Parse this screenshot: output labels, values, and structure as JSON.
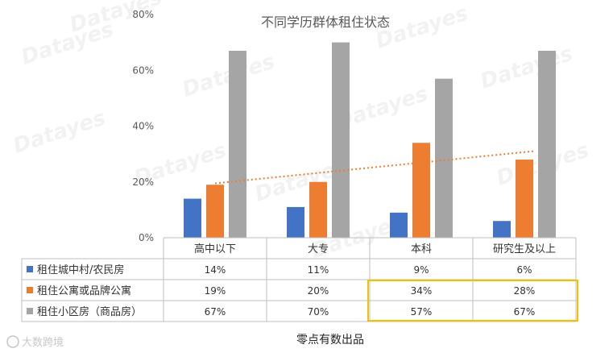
{
  "chart_data": {
    "type": "bar",
    "title": "不同学历群体租住状态",
    "categories": [
      "高中以下",
      "大专",
      "本科",
      "研究生及以上"
    ],
    "y_ticks": [
      "0%",
      "20%",
      "40%",
      "60%",
      "80%"
    ],
    "ylim": [
      0,
      80
    ],
    "grid": false,
    "legend_position": "data-table",
    "series": [
      {
        "name": "租住城中村/农民房",
        "color": "#4472C4",
        "values": [
          14,
          11,
          9,
          6
        ],
        "labels": [
          "14%",
          "11%",
          "9%",
          "6%"
        ]
      },
      {
        "name": "租住公寓或品牌公寓",
        "color": "#ED7D31",
        "values": [
          19,
          20,
          34,
          28
        ],
        "labels": [
          "19%",
          "20%",
          "34%",
          "28%"
        ]
      },
      {
        "name": "租住小区房（商品房）",
        "color": "#A5A5A5",
        "values": [
          67,
          70,
          57,
          67
        ],
        "labels": [
          "67%",
          "70%",
          "57%",
          "67%"
        ]
      }
    ],
    "trendline": {
      "series": "租住公寓或品牌公寓",
      "style": "dotted",
      "color": "#ED7D31",
      "start": 19.5,
      "end": 31
    },
    "highlight": {
      "color": "#F2C200",
      "note": "本科, 研究生及以上 columns of rows 2-3 outlined"
    }
  },
  "footer": {
    "caption": "零点有数出品"
  },
  "watermark": {
    "brand": "Datayes",
    "logo_text": "大数跨境"
  }
}
